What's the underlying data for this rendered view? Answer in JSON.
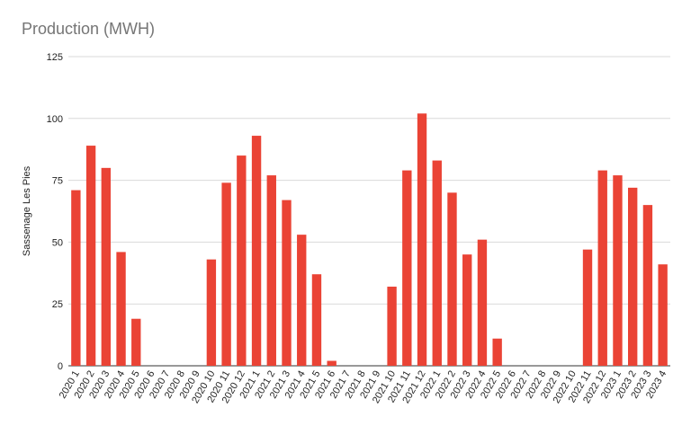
{
  "chart_data": {
    "type": "bar",
    "title": "Production (MWH)",
    "ylabel": "Sassenage Les Pies",
    "xlabel": "",
    "ylim": [
      0,
      125
    ],
    "yticks": [
      0,
      25,
      50,
      75,
      100,
      125
    ],
    "grid": true,
    "legend": "none",
    "bar_color": "#ea4335",
    "categories": [
      "2020 1",
      "2020 2",
      "2020 3",
      "2020 4",
      "2020 5",
      "2020 6",
      "2020 7",
      "2020 8",
      "2020 9",
      "2020 10",
      "2020 11",
      "2020 12",
      "2021 1",
      "2021 2",
      "2021 3",
      "2021 4",
      "2021 5",
      "2021 6",
      "2021 7",
      "2021 8",
      "2021 9",
      "2021 10",
      "2021 11",
      "2021 12",
      "2022 1",
      "2022 2",
      "2022 3",
      "2022 4",
      "2022 5",
      "2022 6",
      "2022 7",
      "2022 8",
      "2022 9",
      "2022 10",
      "2022 11",
      "2022 12",
      "2023 1",
      "2023 2",
      "2023 3",
      "2023 4"
    ],
    "values": [
      71,
      89,
      80,
      46,
      19,
      0,
      0,
      0,
      0,
      43,
      74,
      85,
      93,
      77,
      67,
      53,
      37,
      2,
      0,
      0,
      0,
      32,
      79,
      102,
      83,
      70,
      45,
      51,
      11,
      0,
      0,
      0,
      0,
      0,
      47,
      79,
      77,
      72,
      65,
      41
    ]
  }
}
